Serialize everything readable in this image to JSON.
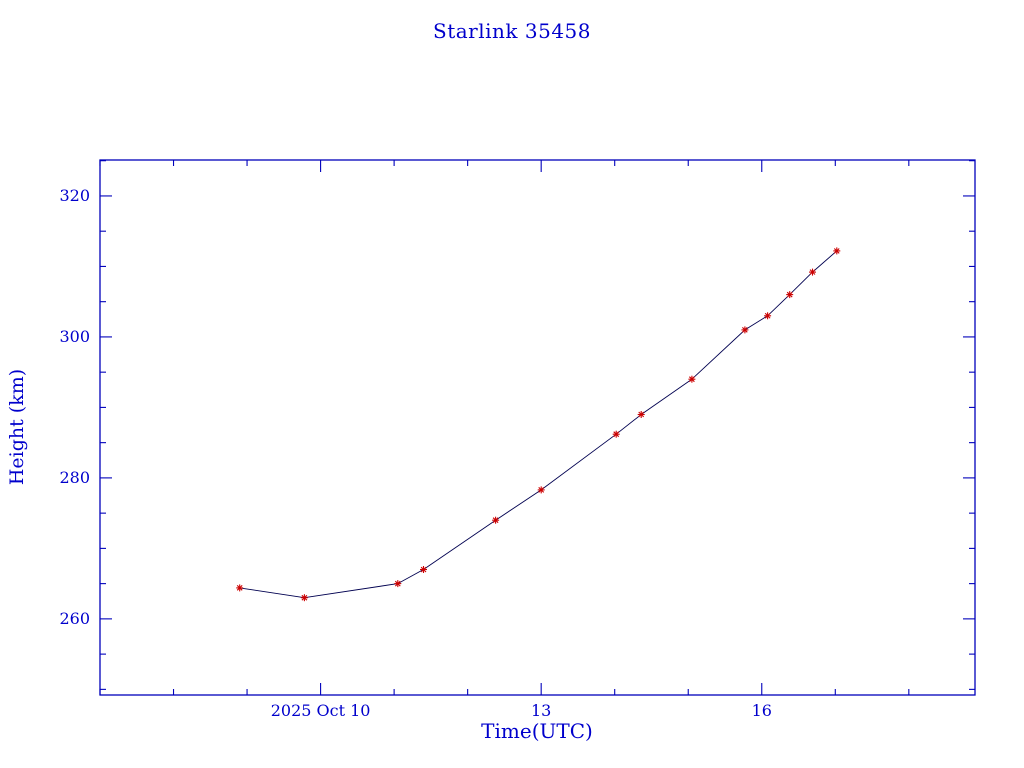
{
  "page": {
    "background": "#ffffff"
  },
  "chart_data": {
    "type": "line",
    "title": "Starlink 35458",
    "xlabel": "Time(UTC)",
    "ylabel": "Height (km)",
    "xlim": [
      7.0,
      18.9
    ],
    "ylim": [
      249.2,
      325.1
    ],
    "grid": false,
    "legend": "none",
    "axis_color": "#0000bb",
    "text_color": "#0000cc",
    "x_minor_step": 1,
    "y_minor_step": 5,
    "xticks": [
      {
        "value": 10,
        "label": "2025 Oct 10"
      },
      {
        "value": 13,
        "label": "13"
      },
      {
        "value": 16,
        "label": "16"
      }
    ],
    "yticks": [
      {
        "value": 260,
        "label": "260"
      },
      {
        "value": 280,
        "label": "280"
      },
      {
        "value": 300,
        "label": "300"
      },
      {
        "value": 320,
        "label": "320"
      }
    ],
    "series": [
      {
        "name": "height",
        "marker": "asterisk",
        "marker_color": "#cc0000",
        "line_color": "#000050",
        "points": [
          {
            "x": 8.9,
            "y": 264.4
          },
          {
            "x": 9.78,
            "y": 263.0
          },
          {
            "x": 11.05,
            "y": 265.0
          },
          {
            "x": 11.4,
            "y": 267.0
          },
          {
            "x": 12.38,
            "y": 274.0
          },
          {
            "x": 13.0,
            "y": 278.3
          },
          {
            "x": 14.02,
            "y": 286.2
          },
          {
            "x": 14.36,
            "y": 289.0
          },
          {
            "x": 15.05,
            "y": 294.0
          },
          {
            "x": 15.77,
            "y": 301.0
          },
          {
            "x": 16.08,
            "y": 303.0
          },
          {
            "x": 16.38,
            "y": 306.0
          },
          {
            "x": 16.69,
            "y": 309.2
          },
          {
            "x": 17.02,
            "y": 312.2
          }
        ]
      }
    ]
  }
}
